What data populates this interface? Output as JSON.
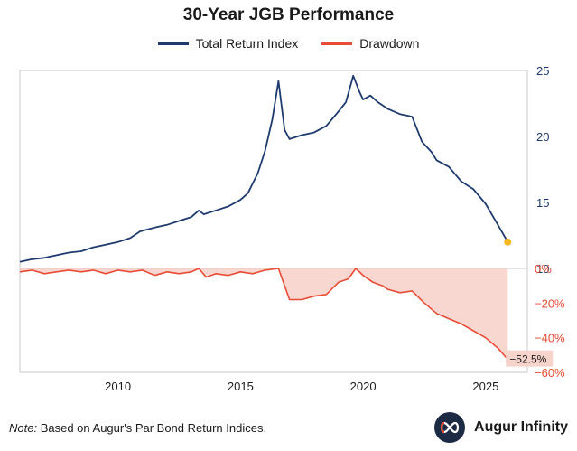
{
  "chart_data": {
    "type": "line",
    "title": "30-Year JGB Performance",
    "legend": [
      "Total Return Index",
      "Drawdown"
    ],
    "legend_position": "top-center",
    "x_ticks": [
      "2010",
      "2015",
      "2020",
      "2025"
    ],
    "x_range": [
      2006,
      2026.7
    ],
    "series": [
      {
        "name": "Total Return Index",
        "axis": "top-right",
        "color": "#1f3a6e",
        "ylim": [
          10,
          25
        ],
        "y_ticks": [
          "10",
          "15",
          "20",
          "25"
        ],
        "x": [
          2006.0,
          2006.5,
          2007.0,
          2007.5,
          2008.0,
          2008.5,
          2009.0,
          2009.5,
          2010.0,
          2010.5,
          2010.9,
          2011.5,
          2012.0,
          2012.5,
          2013.0,
          2013.3,
          2013.5,
          2014.0,
          2014.5,
          2015.0,
          2015.3,
          2015.7,
          2016.0,
          2016.3,
          2016.55,
          2016.8,
          2017.0,
          2017.5,
          2018.0,
          2018.5,
          2019.0,
          2019.3,
          2019.6,
          2019.85,
          2020.0,
          2020.3,
          2020.6,
          2021.0,
          2021.5,
          2022.0,
          2022.4,
          2022.8,
          2023.0,
          2023.5,
          2024.0,
          2024.5,
          2025.0,
          2025.5,
          2025.9
        ],
        "values": [
          10.5,
          10.7,
          10.8,
          11.0,
          11.2,
          11.3,
          11.6,
          11.8,
          12.0,
          12.3,
          12.8,
          13.1,
          13.3,
          13.6,
          13.9,
          14.4,
          14.1,
          14.4,
          14.7,
          15.2,
          15.7,
          17.2,
          18.9,
          21.3,
          24.2,
          20.5,
          19.8,
          20.1,
          20.3,
          20.8,
          21.9,
          22.6,
          24.6,
          23.4,
          22.8,
          23.1,
          22.6,
          22.1,
          21.7,
          21.5,
          19.6,
          18.8,
          18.2,
          17.7,
          16.6,
          16.0,
          14.9,
          13.3,
          12.0
        ],
        "annotation": "endpoint marker"
      },
      {
        "name": "Drawdown",
        "axis": "bottom-right",
        "color": "#e84c37",
        "ylim": [
          -60,
          0
        ],
        "y_ticks": [
          "0%",
          "−20%",
          "−40%",
          "−60%"
        ],
        "x": [
          2006.0,
          2006.5,
          2007.0,
          2007.5,
          2008.0,
          2008.5,
          2009.0,
          2009.5,
          2010.0,
          2010.5,
          2011.0,
          2011.5,
          2012.0,
          2012.5,
          2013.0,
          2013.3,
          2013.6,
          2014.0,
          2014.5,
          2015.0,
          2015.5,
          2016.0,
          2016.55,
          2016.8,
          2017.0,
          2017.5,
          2018.0,
          2018.5,
          2019.0,
          2019.4,
          2019.7,
          2020.0,
          2020.4,
          2020.8,
          2021.0,
          2021.5,
          2022.0,
          2022.5,
          2023.0,
          2023.5,
          2024.0,
          2024.5,
          2025.0,
          2025.5,
          2025.9
        ],
        "values": [
          -2,
          -1,
          -3,
          -2,
          -1,
          -2,
          -1,
          -3,
          -1,
          -2,
          -1,
          -4,
          -2,
          -3,
          -2,
          0,
          -5,
          -3,
          -4,
          -2,
          -3,
          -1,
          0,
          -10,
          -18,
          -18,
          -16,
          -15,
          -8,
          -6,
          0,
          -4,
          -8,
          -10,
          -12,
          -14,
          -13,
          -20,
          -26,
          -29,
          -32,
          -36,
          -40,
          -46,
          -52.5
        ],
        "end_label": "−52.5%"
      }
    ]
  },
  "note": {
    "label": "Note:",
    "text": "Based on Augur's Par Bond Return Indices."
  },
  "brand": {
    "name": "Augur Infinity",
    "icon": "infinity-icon"
  },
  "colors": {
    "navy": "#1f3a6e",
    "red": "#e84c37",
    "marker": "#f5b820",
    "brand_bg": "#1c2a44"
  }
}
